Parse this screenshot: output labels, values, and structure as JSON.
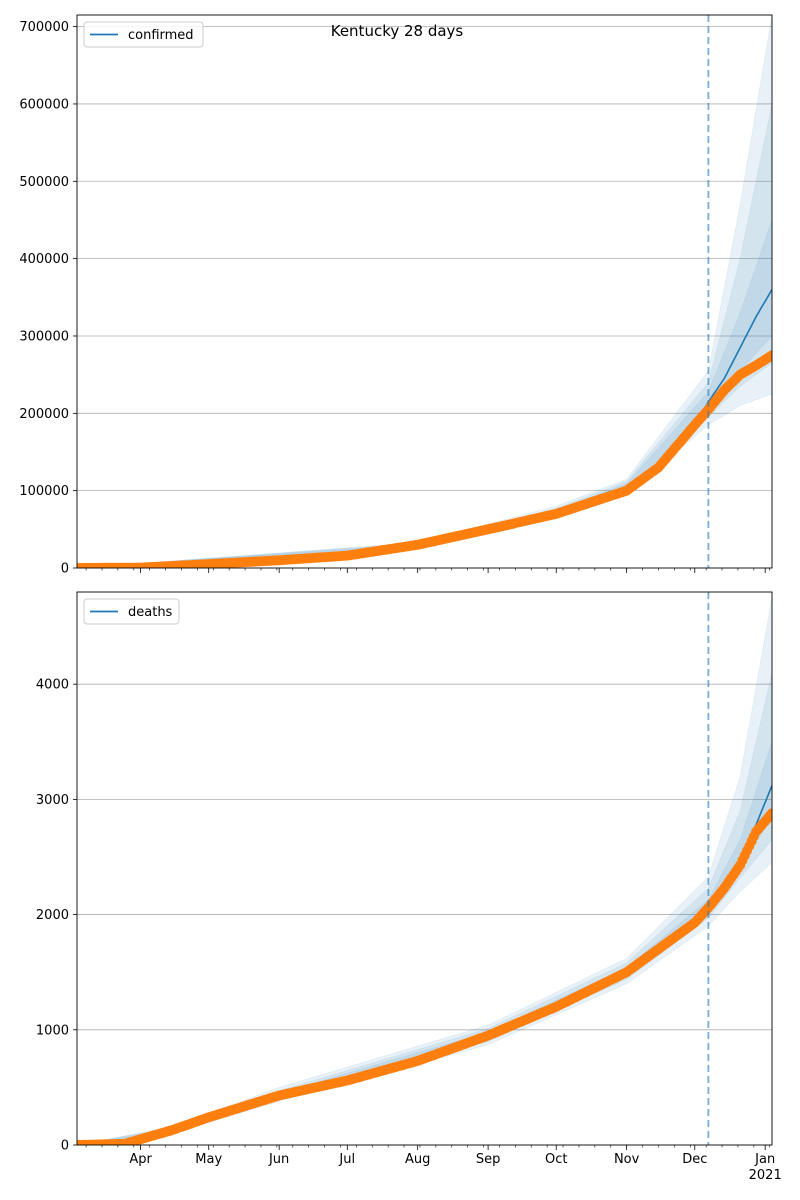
{
  "figure": {
    "title": "Kentucky 28 days"
  },
  "colors": {
    "model": "#1f77b4",
    "observed": "#ff7f0e",
    "band": "#1f77b4",
    "grid": "#b0b0b0",
    "forecast_start": "#1f77b4"
  },
  "x_axis": {
    "ticks": [
      {
        "date": "2020-04-01",
        "label": "Apr"
      },
      {
        "date": "2020-05-01",
        "label": "May"
      },
      {
        "date": "2020-06-01",
        "label": "Jun"
      },
      {
        "date": "2020-07-01",
        "label": "Jul"
      },
      {
        "date": "2020-08-01",
        "label": "Aug"
      },
      {
        "date": "2020-09-01",
        "label": "Sep"
      },
      {
        "date": "2020-10-01",
        "label": "Oct"
      },
      {
        "date": "2020-11-01",
        "label": "Nov"
      },
      {
        "date": "2020-12-01",
        "label": "Dec"
      },
      {
        "date": "2021-01-01",
        "label": "Jan"
      }
    ],
    "year_label": "2021",
    "range": [
      "2020-03-04",
      "2021-01-04"
    ]
  },
  "forecast_start_date": "2020-12-07",
  "chart_data": [
    {
      "type": "line",
      "legend": "confirmed",
      "legend_position": "top-left",
      "grid": true,
      "ylim": [
        0,
        715000
      ],
      "y_ticks": [
        0,
        100000,
        200000,
        300000,
        400000,
        500000,
        600000,
        700000
      ],
      "model": [
        [
          "2020-03-04",
          0
        ],
        [
          "2020-04-01",
          500
        ],
        [
          "2020-05-01",
          5000
        ],
        [
          "2020-06-01",
          10000
        ],
        [
          "2020-07-01",
          16000
        ],
        [
          "2020-08-01",
          30000
        ],
        [
          "2020-09-01",
          50000
        ],
        [
          "2020-10-01",
          72000
        ],
        [
          "2020-10-15",
          85000
        ],
        [
          "2020-11-01",
          105000
        ],
        [
          "2020-11-15",
          135000
        ],
        [
          "2020-12-01",
          185000
        ],
        [
          "2020-12-07",
          215000
        ],
        [
          "2020-12-14",
          245000
        ],
        [
          "2020-12-21",
          285000
        ],
        [
          "2020-12-28",
          325000
        ],
        [
          "2021-01-04",
          360000
        ]
      ],
      "bands": [
        {
          "lower": [
            [
              "2020-03-04",
              0
            ],
            [
              "2020-08-01",
              27000
            ],
            [
              "2020-10-01",
              65000
            ],
            [
              "2020-11-01",
              95000
            ],
            [
              "2020-12-07",
              185000
            ],
            [
              "2020-12-21",
              210000
            ],
            [
              "2021-01-04",
              225000
            ]
          ],
          "upper": [
            [
              "2020-03-04",
              0
            ],
            [
              "2020-08-01",
              33000
            ],
            [
              "2020-10-01",
              80000
            ],
            [
              "2020-11-01",
              115000
            ],
            [
              "2020-12-07",
              255000
            ],
            [
              "2020-12-21",
              470000
            ],
            [
              "2021-01-04",
              715000
            ]
          ]
        },
        {
          "lower": [
            [
              "2020-03-04",
              0
            ],
            [
              "2020-08-01",
              28000
            ],
            [
              "2020-10-01",
              67000
            ],
            [
              "2020-11-01",
              98000
            ],
            [
              "2020-12-07",
              195000
            ],
            [
              "2020-12-21",
              235000
            ],
            [
              "2021-01-04",
              265000
            ]
          ],
          "upper": [
            [
              "2020-03-04",
              0
            ],
            [
              "2020-08-01",
              32000
            ],
            [
              "2020-10-01",
              77000
            ],
            [
              "2020-11-01",
              112000
            ],
            [
              "2020-12-07",
              240000
            ],
            [
              "2020-12-21",
              400000
            ],
            [
              "2021-01-04",
              600000
            ]
          ]
        },
        {
          "lower": [
            [
              "2020-03-04",
              0
            ],
            [
              "2020-08-01",
              29000
            ],
            [
              "2020-10-01",
              69000
            ],
            [
              "2020-11-01",
              101000
            ],
            [
              "2020-12-07",
              203000
            ],
            [
              "2020-12-21",
              255000
            ],
            [
              "2021-01-04",
              300000
            ]
          ],
          "upper": [
            [
              "2020-03-04",
              0
            ],
            [
              "2020-08-01",
              31000
            ],
            [
              "2020-10-01",
              75000
            ],
            [
              "2020-11-01",
              109000
            ],
            [
              "2020-12-07",
              228000
            ],
            [
              "2020-12-21",
              330000
            ],
            [
              "2021-01-04",
              450000
            ]
          ]
        }
      ],
      "observed": [
        [
          "2020-03-04",
          0
        ],
        [
          "2020-04-01",
          500
        ],
        [
          "2020-05-01",
          5000
        ],
        [
          "2020-06-01",
          10000
        ],
        [
          "2020-07-01",
          16000
        ],
        [
          "2020-08-01",
          30000
        ],
        [
          "2020-09-01",
          50000
        ],
        [
          "2020-10-01",
          70000
        ],
        [
          "2020-11-01",
          100000
        ],
        [
          "2020-11-15",
          130000
        ],
        [
          "2020-12-01",
          185000
        ],
        [
          "2020-12-07",
          205000
        ],
        [
          "2020-12-14",
          230000
        ],
        [
          "2020-12-21",
          250000
        ],
        [
          "2020-12-28",
          262000
        ],
        [
          "2021-01-04",
          275000
        ]
      ]
    },
    {
      "type": "line",
      "legend": "deaths",
      "legend_position": "top-left",
      "grid": true,
      "ylim": [
        0,
        4800
      ],
      "y_ticks": [
        0,
        1000,
        2000,
        3000,
        4000
      ],
      "model": [
        [
          "2020-03-04",
          0
        ],
        [
          "2020-03-25",
          10
        ],
        [
          "2020-04-15",
          130
        ],
        [
          "2020-05-01",
          240
        ],
        [
          "2020-06-01",
          430
        ],
        [
          "2020-07-01",
          560
        ],
        [
          "2020-08-01",
          730
        ],
        [
          "2020-09-01",
          950
        ],
        [
          "2020-10-01",
          1200
        ],
        [
          "2020-11-01",
          1500
        ],
        [
          "2020-11-15",
          1680
        ],
        [
          "2020-12-01",
          1930
        ],
        [
          "2020-12-07",
          2060
        ],
        [
          "2020-12-14",
          2250
        ],
        [
          "2020-12-21",
          2480
        ],
        [
          "2020-12-28",
          2780
        ],
        [
          "2021-01-04",
          3120
        ]
      ],
      "bands": [
        {
          "lower": [
            [
              "2020-03-04",
              0
            ],
            [
              "2020-04-15",
              100
            ],
            [
              "2020-06-01",
              380
            ],
            [
              "2020-09-01",
              870
            ],
            [
              "2020-11-01",
              1400
            ],
            [
              "2020-12-07",
              1900
            ],
            [
              "2020-12-21",
              2200
            ],
            [
              "2021-01-04",
              2450
            ]
          ],
          "upper": [
            [
              "2020-03-04",
              0
            ],
            [
              "2020-04-15",
              160
            ],
            [
              "2020-06-01",
              500
            ],
            [
              "2020-09-01",
              1040
            ],
            [
              "2020-11-01",
              1620
            ],
            [
              "2020-12-07",
              2330
            ],
            [
              "2020-12-21",
              3200
            ],
            [
              "2021-01-04",
              4750
            ]
          ]
        },
        {
          "lower": [
            [
              "2020-03-04",
              0
            ],
            [
              "2020-04-15",
              110
            ],
            [
              "2020-06-01",
              400
            ],
            [
              "2020-09-01",
              900
            ],
            [
              "2020-11-01",
              1440
            ],
            [
              "2020-12-07",
              1970
            ],
            [
              "2020-12-21",
              2320
            ],
            [
              "2021-01-04",
              2650
            ]
          ],
          "upper": [
            [
              "2020-03-04",
              0
            ],
            [
              "2020-04-15",
              150
            ],
            [
              "2020-06-01",
              470
            ],
            [
              "2020-09-01",
              1010
            ],
            [
              "2020-11-01",
              1580
            ],
            [
              "2020-12-07",
              2230
            ],
            [
              "2020-12-21",
              2900
            ],
            [
              "2021-01-04",
              4100
            ]
          ]
        },
        {
          "lower": [
            [
              "2020-03-04",
              0
            ],
            [
              "2020-04-15",
              120
            ],
            [
              "2020-06-01",
              415
            ],
            [
              "2020-09-01",
              925
            ],
            [
              "2020-11-01",
              1470
            ],
            [
              "2020-12-07",
              2010
            ],
            [
              "2020-12-21",
              2400
            ],
            [
              "2021-01-04",
              2850
            ]
          ],
          "upper": [
            [
              "2020-03-04",
              0
            ],
            [
              "2020-04-15",
              140
            ],
            [
              "2020-06-01",
              450
            ],
            [
              "2020-09-01",
              980
            ],
            [
              "2020-11-01",
              1540
            ],
            [
              "2020-12-07",
              2130
            ],
            [
              "2020-12-21",
              2650
            ],
            [
              "2021-01-04",
              3500
            ]
          ]
        }
      ],
      "observed": [
        [
          "2020-03-04",
          0
        ],
        [
          "2020-03-25",
          10
        ],
        [
          "2020-04-15",
          130
        ],
        [
          "2020-05-01",
          240
        ],
        [
          "2020-06-01",
          430
        ],
        [
          "2020-07-01",
          560
        ],
        [
          "2020-08-01",
          730
        ],
        [
          "2020-09-01",
          950
        ],
        [
          "2020-10-01",
          1200
        ],
        [
          "2020-11-01",
          1500
        ],
        [
          "2020-12-01",
          1930
        ],
        [
          "2020-12-07",
          2060
        ],
        [
          "2020-12-14",
          2230
        ],
        [
          "2020-12-21",
          2430
        ],
        [
          "2020-12-28",
          2720
        ],
        [
          "2021-01-04",
          2880
        ]
      ]
    }
  ]
}
